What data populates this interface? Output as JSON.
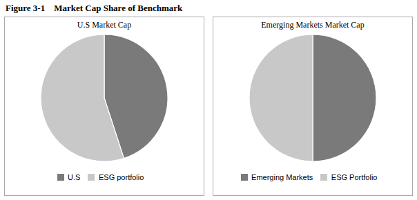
{
  "title": "Figure 3-1    Market Cap Share of Benchmark",
  "chart_data": [
    {
      "type": "pie",
      "title": "U.S Market Cap",
      "categories": [
        "U.S",
        "ESG portfolio"
      ],
      "values": [
        45,
        55
      ],
      "colors": [
        "#7a7a7a",
        "#c8c8c8"
      ],
      "legend": "bottom"
    },
    {
      "type": "pie",
      "title": "Emerging Markets Market Cap",
      "categories": [
        "Emerging Markets",
        "ESG Portfolio"
      ],
      "values": [
        50,
        50
      ],
      "colors": [
        "#7a7a7a",
        "#c8c8c8"
      ],
      "legend": "bottom"
    }
  ]
}
